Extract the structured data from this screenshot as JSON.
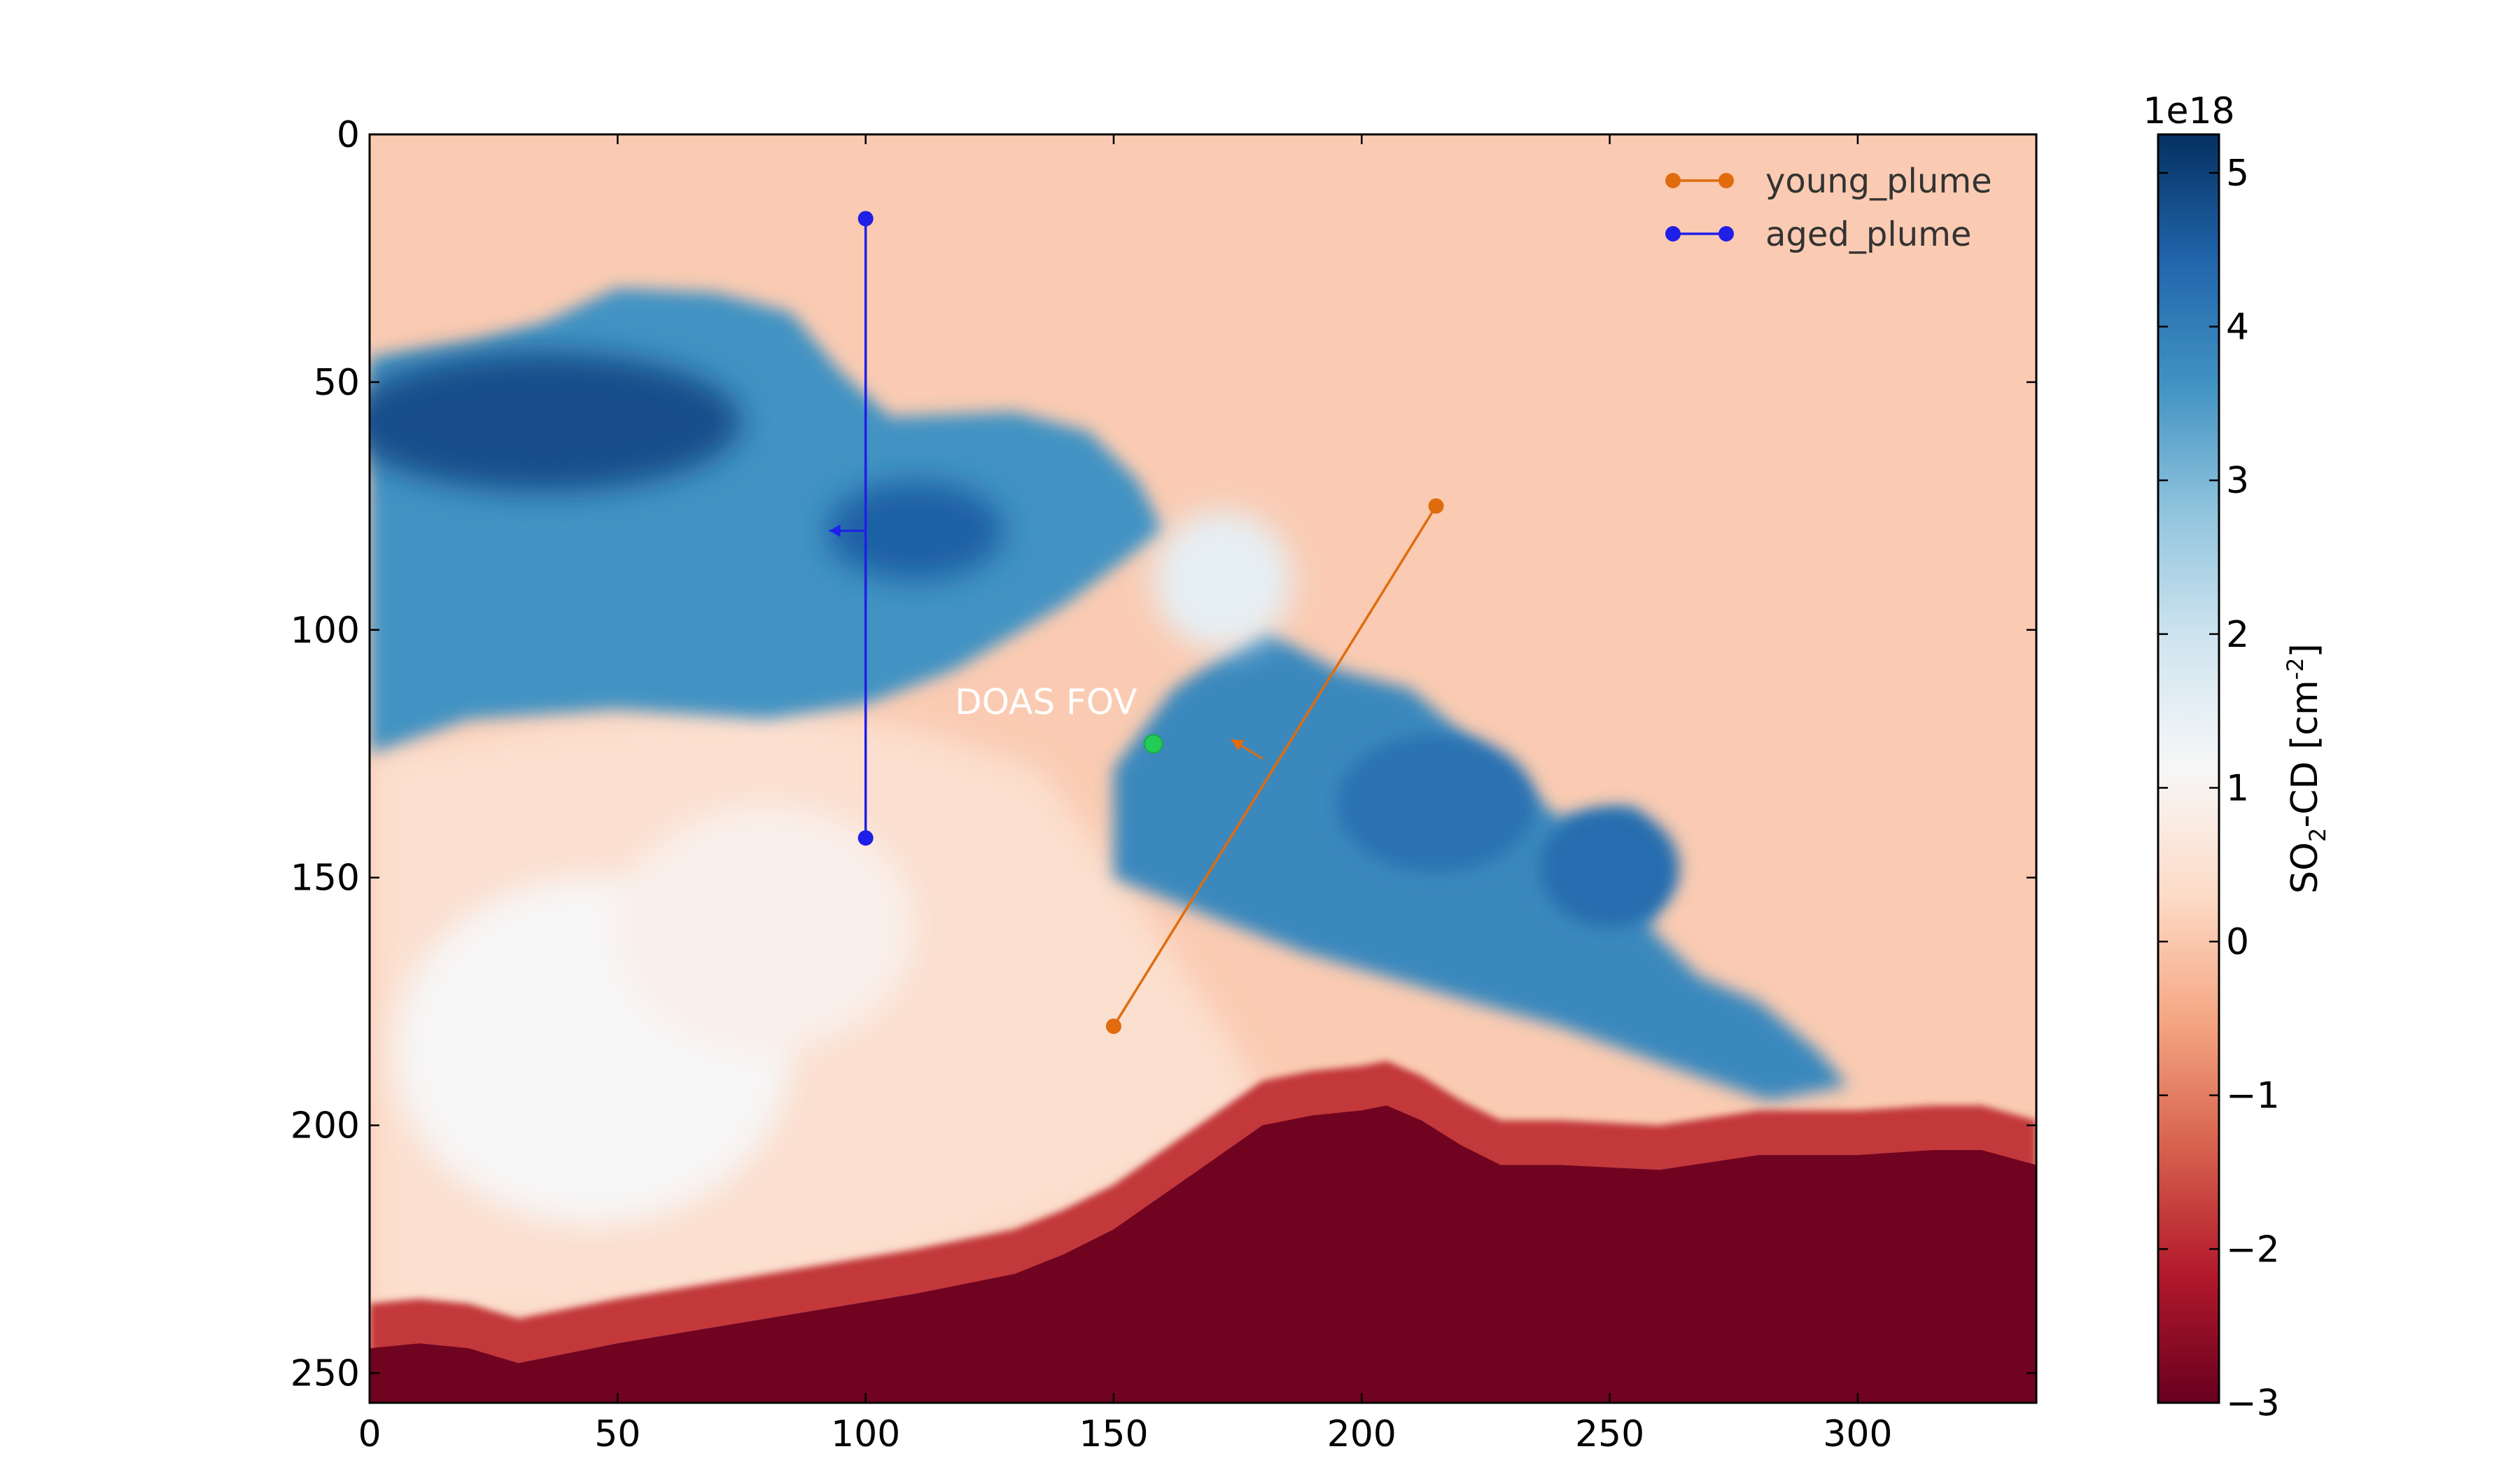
{
  "chart_data": {
    "type": "heatmap",
    "title": "",
    "xlabel": "",
    "ylabel": "",
    "xlim": [
      0,
      336
    ],
    "ylim": [
      256,
      0
    ],
    "x_ticks": [
      0,
      50,
      100,
      150,
      200,
      250,
      300
    ],
    "y_ticks": [
      0,
      50,
      100,
      150,
      200,
      250
    ],
    "colormap": "RdBu",
    "colorbar": {
      "label_prefix": "SO",
      "label_sub": "2",
      "label_mid": "-CD [cm",
      "label_sup": "-2",
      "label_suffix": "]",
      "scale": "1e18",
      "range": [
        -3,
        5.25
      ],
      "ticks": [
        -3,
        -2,
        -1,
        0,
        1,
        2,
        3,
        4,
        5
      ],
      "tick_labels": [
        "−3",
        "−2",
        "−1",
        "0",
        "1",
        "2",
        "3",
        "4",
        "5"
      ]
    },
    "series": [
      {
        "name": "young_plume",
        "color": "#e06c0e",
        "points": [
          [
            150,
            180
          ],
          [
            215,
            75
          ]
        ],
        "direction_arrow_at": [
          180,
          126
        ]
      },
      {
        "name": "aged_plume",
        "color": "#1f1fe8",
        "points": [
          [
            100,
            17
          ],
          [
            100,
            142
          ]
        ],
        "direction_arrow_at": [
          100,
          80
        ]
      }
    ],
    "annotations": [
      {
        "text": "DOAS FOV",
        "marker": [
          158,
          123
        ],
        "marker_color": "#22cc55",
        "text_at": [
          118,
          117
        ]
      }
    ],
    "legend_position": "upper-right",
    "field_description": {
      "aged_plume_max": 5.0,
      "young_plume_max": 4.2,
      "background": 0,
      "terrain_min": -3
    }
  }
}
